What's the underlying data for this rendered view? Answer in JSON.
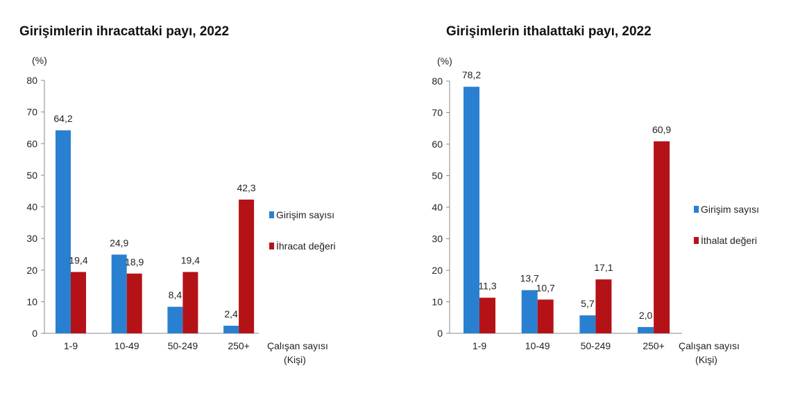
{
  "chart_data": [
    {
      "type": "bar",
      "title": "Girişimlerin ihracattaki payı, 2022",
      "ylabel": "(%)",
      "xlabel": [
        "Çalışan sayısı",
        "(Kişi)"
      ],
      "ylim": [
        0,
        80
      ],
      "yticks": [
        0,
        10,
        20,
        30,
        40,
        50,
        60,
        70,
        80
      ],
      "categories": [
        "1-9",
        "10-49",
        "50-249",
        "250+"
      ],
      "legend_position": "right",
      "series": [
        {
          "name": "Girişim sayısı",
          "color": "#2a80d0",
          "values": [
            64.2,
            24.9,
            8.4,
            2.4
          ],
          "labels": [
            "64,2",
            "24,9",
            "8,4",
            "2,4"
          ]
        },
        {
          "name": "İhracat değeri",
          "color": "#b51218",
          "values": [
            19.4,
            18.9,
            19.4,
            42.3
          ],
          "labels": [
            "19,4",
            "18,9",
            "19,4",
            "42,3"
          ]
        }
      ]
    },
    {
      "type": "bar",
      "title": "Girişimlerin ithalattaki payı, 2022",
      "ylabel": "(%)",
      "xlabel": [
        "Çalışan sayısı",
        "(Kişi)"
      ],
      "ylim": [
        0,
        80
      ],
      "yticks": [
        0,
        10,
        20,
        30,
        40,
        50,
        60,
        70,
        80
      ],
      "categories": [
        "1-9",
        "10-49",
        "50-249",
        "250+"
      ],
      "legend_position": "right",
      "series": [
        {
          "name": "Girişim sayısı",
          "color": "#2a80d0",
          "values": [
            78.2,
            13.7,
            5.7,
            2.0
          ],
          "labels": [
            "78,2",
            "13,7",
            "5,7",
            "2,0"
          ]
        },
        {
          "name": "İthalat değeri",
          "color": "#b51218",
          "values": [
            11.3,
            10.7,
            17.1,
            60.9
          ],
          "labels": [
            "11,3",
            "10,7",
            "17,1",
            "60,9"
          ]
        }
      ]
    }
  ]
}
